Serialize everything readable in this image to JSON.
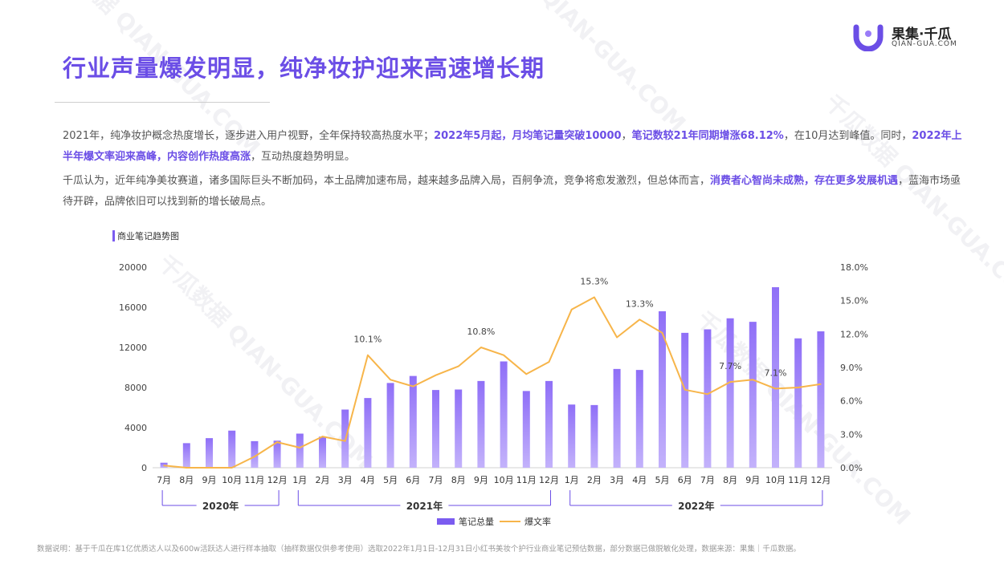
{
  "page": {
    "title": "行业声量爆发明显，纯净妆护迎来高速增长期",
    "logo": {
      "name": "果集·千瓜",
      "sub": "QIAN-GUA.COM",
      "watermark": "千瓜数据 QIAN-GUA.COM"
    },
    "para1": {
      "t1": "2021年，纯净妆护概念热度增长，逐步进入用户视野，全年保持较高热度水平；",
      "b1": "2022年5月起，月均笔记量突破10000",
      "t2": "，",
      "b2": "笔记数较21年同期增涨68.12%",
      "t3": "，在10月达到峰值。同时，",
      "b3": "2022年上半年爆文率迎来高峰，内容创作热度高涨",
      "t4": "，互动热度趋势明显。"
    },
    "para2": {
      "t1": "千瓜认为，近年纯净美妆赛道，诸多国际巨头不断加码，本土品牌加速布局，越来越多品牌入局，百舸争流，竞争将愈发激烈，但总体而言，",
      "b1": "消费者心智尚未成熟，存在更多发展机遇",
      "t2": "，蓝海市场亟待开辟，品牌依旧可以找到新的增长破局点。"
    },
    "chart_title": "商业笔记趋势图",
    "footnote": "数据说明：基于千瓜在库1亿优质达人以及600w活跃达人进行样本抽取（抽样数据仅供参考使用）选取2022年1月1日-12月31日小红书美妆个护行业商业笔记预估数据，部分数据已做脱敏化处理，数据来源：果集｜千瓜数据。"
  },
  "chart_data": {
    "type": "bar+line",
    "categories": [
      "7月",
      "8月",
      "9月",
      "10月",
      "11月",
      "12月",
      "1月",
      "2月",
      "3月",
      "4月",
      "5月",
      "6月",
      "7月",
      "8月",
      "9月",
      "10月",
      "11月",
      "12月",
      "1月",
      "2月",
      "3月",
      "4月",
      "5月",
      "6月",
      "7月",
      "8月",
      "9月",
      "10月",
      "11月",
      "12月"
    ],
    "year_groups": [
      {
        "label": "2020年",
        "start": 0,
        "end": 5
      },
      {
        "label": "2021年",
        "start": 6,
        "end": 17
      },
      {
        "label": "2022年",
        "start": 18,
        "end": 29
      }
    ],
    "series": [
      {
        "name": "笔记总量",
        "type": "bar",
        "axis": "left",
        "color": "#7b5cf0",
        "values": [
          500,
          2450,
          2950,
          3700,
          2650,
          2700,
          3400,
          3100,
          5800,
          6950,
          8450,
          9150,
          7750,
          7800,
          8650,
          10600,
          7650,
          8650,
          6300,
          6250,
          9850,
          9750,
          15600,
          13450,
          13800,
          14900,
          14550,
          18000,
          12900,
          13600
        ]
      },
      {
        "name": "爆文率",
        "type": "line",
        "axis": "right",
        "color": "#f7b54a",
        "values": [
          0.2,
          0,
          0,
          0,
          1.0,
          2.3,
          1.8,
          2.8,
          2.4,
          10.1,
          7.9,
          7.3,
          8.3,
          9.1,
          10.8,
          10.1,
          8.4,
          9.5,
          14.2,
          15.3,
          11.7,
          13.3,
          12.1,
          7.0,
          6.6,
          7.7,
          7.9,
          7.1,
          7.2,
          7.5
        ]
      }
    ],
    "point_labels": [
      {
        "index": 9,
        "text": "10.1%"
      },
      {
        "index": 14,
        "text": "10.8%"
      },
      {
        "index": 19,
        "text": "15.3%"
      },
      {
        "index": 21,
        "text": "13.3%"
      },
      {
        "index": 25,
        "text": "7.7%"
      },
      {
        "index": 27,
        "text": "7.1%"
      }
    ],
    "y_left": {
      "min": 0,
      "max": 20000,
      "ticks": [
        "0",
        "4000",
        "8000",
        "12000",
        "16000",
        "20000"
      ]
    },
    "y_right": {
      "min": 0,
      "max": 18,
      "ticks": [
        "0.0%",
        "3.0%",
        "6.0%",
        "9.0%",
        "12.0%",
        "15.0%",
        "18.0%"
      ]
    },
    "legend": {
      "position": "bottom",
      "items": [
        "笔记总量",
        "爆文率"
      ]
    },
    "grid": false
  }
}
